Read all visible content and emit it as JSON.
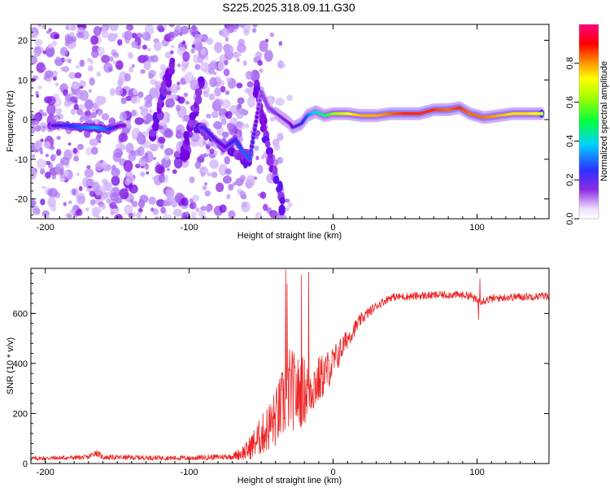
{
  "title": "S225.2025.318.09.11.G30",
  "chart_data": [
    {
      "type": "heatmap",
      "name": "spectrogram",
      "xlabel": "Height of straight line (km)",
      "ylabel": "Frequency (Hz)",
      "xlim": [
        -210,
        150
      ],
      "ylim": [
        -25,
        24
      ],
      "xticks": [
        -200,
        -100,
        0,
        100
      ],
      "xtick_labels": [
        "-200",
        "-100",
        "0",
        "100"
      ],
      "yticks": [
        20,
        10,
        0,
        -10,
        -20
      ],
      "ytick_labels": [
        "20",
        "10",
        "0",
        "-10",
        "-20"
      ],
      "colorbar": {
        "label": "Normalized spectral amplitude",
        "range": [
          0,
          1
        ],
        "ticks": [
          0.0,
          0.2,
          0.4,
          0.6,
          0.8
        ],
        "tick_labels": [
          "0.0",
          "0.2",
          "0.4",
          "0.6",
          "0.8"
        ]
      },
      "ridge": [
        {
          "x": -195,
          "y": -1.5,
          "a": 0.25
        },
        {
          "x": -185,
          "y": -1.5,
          "a": 0.3
        },
        {
          "x": -175,
          "y": -2,
          "a": 0.35
        },
        {
          "x": -165,
          "y": -2,
          "a": 0.4
        },
        {
          "x": -157,
          "y": -2.5,
          "a": 0.35
        },
        {
          "x": -148,
          "y": -1.5,
          "a": 0.2
        },
        {
          "x": -90,
          "y": -2,
          "a": 0.3
        },
        {
          "x": -82,
          "y": -5,
          "a": 0.25
        },
        {
          "x": -75,
          "y": -7,
          "a": 0.25
        },
        {
          "x": -68,
          "y": -5,
          "a": 0.3
        },
        {
          "x": -63,
          "y": -8,
          "a": 0.35
        },
        {
          "x": -58,
          "y": -10,
          "a": 0.35
        },
        {
          "x": -50,
          "y": 7,
          "a": 0.15
        },
        {
          "x": -45,
          "y": 3,
          "a": 0.15
        },
        {
          "x": -30,
          "y": -1,
          "a": 0.2
        },
        {
          "x": -28,
          "y": -2,
          "a": 0.25
        },
        {
          "x": -22,
          "y": -1,
          "a": 0.3
        },
        {
          "x": -18,
          "y": 1,
          "a": 0.35
        },
        {
          "x": -12,
          "y": 2,
          "a": 0.45
        },
        {
          "x": -6,
          "y": 1,
          "a": 0.5
        },
        {
          "x": 0,
          "y": 1.5,
          "a": 0.6
        },
        {
          "x": 10,
          "y": 1.5,
          "a": 0.7
        },
        {
          "x": 20,
          "y": 1,
          "a": 0.8
        },
        {
          "x": 30,
          "y": 1,
          "a": 0.8
        },
        {
          "x": 40,
          "y": 1.5,
          "a": 0.85
        },
        {
          "x": 50,
          "y": 1.5,
          "a": 0.9
        },
        {
          "x": 60,
          "y": 1.5,
          "a": 0.9
        },
        {
          "x": 70,
          "y": 2.5,
          "a": 0.9
        },
        {
          "x": 80,
          "y": 2.5,
          "a": 0.85
        },
        {
          "x": 88,
          "y": 3,
          "a": 0.9
        },
        {
          "x": 95,
          "y": 1.5,
          "a": 0.85
        },
        {
          "x": 105,
          "y": 0.5,
          "a": 0.85
        },
        {
          "x": 115,
          "y": 1,
          "a": 0.8
        },
        {
          "x": 125,
          "y": 1.5,
          "a": 0.75
        },
        {
          "x": 135,
          "y": 1.5,
          "a": 0.75
        },
        {
          "x": 145,
          "y": 1.5,
          "a": 0.7
        }
      ],
      "streaks": [
        {
          "x": [
            -95,
            -58
          ],
          "y": [
            -2,
            -11
          ]
        },
        {
          "x": [
            -55,
            -35
          ],
          "y": [
            9,
            -22
          ]
        },
        {
          "x": [
            -105,
            -90
          ],
          "y": [
            -10,
            10
          ]
        },
        {
          "x": [
            -125,
            -112
          ],
          "y": [
            -5,
            15
          ]
        }
      ]
    },
    {
      "type": "line",
      "name": "snr",
      "xlabel": "Height of straight line (km)",
      "ylabel": "SNR (10 * v/v)",
      "xlim": [
        -210,
        150
      ],
      "ylim": [
        0,
        780
      ],
      "xticks": [
        -200,
        -100,
        0,
        100
      ],
      "xtick_labels": [
        "-200",
        "-100",
        "0",
        "100"
      ],
      "yticks": [
        0,
        200,
        400,
        600
      ],
      "ytick_labels": [
        "0",
        "200",
        "400",
        "600"
      ],
      "color": "#ee2222",
      "envelope": {
        "x": [
          -210,
          -170,
          -165,
          -160,
          -100,
          -70,
          -60,
          -50,
          -40,
          -33,
          -30,
          -25,
          -20,
          -10,
          0,
          10,
          20,
          30,
          40,
          60,
          80,
          95,
          100,
          120,
          150
        ],
        "mean": [
          20,
          25,
          45,
          25,
          22,
          28,
          50,
          110,
          180,
          260,
          300,
          280,
          290,
          330,
          400,
          500,
          580,
          630,
          665,
          670,
          675,
          672,
          650,
          665,
          670
        ],
        "noise": [
          8,
          10,
          15,
          10,
          10,
          12,
          40,
          80,
          120,
          160,
          170,
          150,
          140,
          100,
          70,
          40,
          25,
          18,
          16,
          16,
          16,
          16,
          18,
          16,
          16
        ]
      },
      "spikes": [
        {
          "x": -33,
          "y": 775
        },
        {
          "x": -32,
          "y": 720
        },
        {
          "x": -22,
          "y": 755
        },
        {
          "x": -17,
          "y": 765
        },
        {
          "x": 102,
          "y": 740
        },
        {
          "x": 101,
          "y": 575
        }
      ]
    }
  ]
}
